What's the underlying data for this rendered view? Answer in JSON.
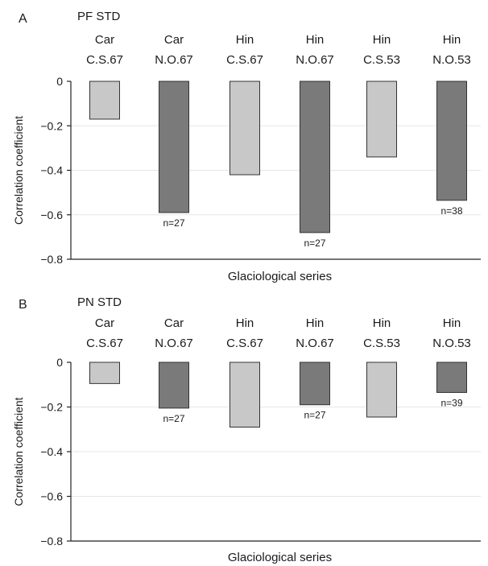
{
  "chart_data": [
    {
      "type": "bar",
      "panel_letter": "A",
      "title": "PF STD",
      "categories": [
        {
          "line1": "Car",
          "line2": "C.S.67"
        },
        {
          "line1": "Car",
          "line2": "N.O.67"
        },
        {
          "line1": "Hin",
          "line2": "C.S.67"
        },
        {
          "line1": "Hin",
          "line2": "N.O.67"
        },
        {
          "line1": "Hin",
          "line2": "C.S.53"
        },
        {
          "line1": "Hin",
          "line2": "N.O.53"
        }
      ],
      "values": [
        -0.17,
        -0.59,
        -0.42,
        -0.68,
        -0.34,
        -0.535
      ],
      "bar_colors": [
        "#c8c8c8",
        "#7a7a7a",
        "#c8c8c8",
        "#7a7a7a",
        "#c8c8c8",
        "#7a7a7a"
      ],
      "data_labels": [
        "",
        "n=27",
        "",
        "n=27",
        "",
        "n=38"
      ],
      "xlabel": "Glaciological series",
      "ylabel": "Correlation coefficient",
      "ylim": [
        -0.8,
        0
      ],
      "yticks": [
        0,
        -0.2,
        -0.4,
        -0.6,
        -0.8
      ],
      "ytick_labels": [
        "0",
        "−0.2",
        "−0.4",
        "−0.6",
        "−0.8"
      ],
      "grid": "horizontal",
      "grid_color": "#e6e6e6"
    },
    {
      "type": "bar",
      "panel_letter": "B",
      "title": "PN STD",
      "categories": [
        {
          "line1": "Car",
          "line2": "C.S.67"
        },
        {
          "line1": "Car",
          "line2": "N.O.67"
        },
        {
          "line1": "Hin",
          "line2": "C.S.67"
        },
        {
          "line1": "Hin",
          "line2": "N.O.67"
        },
        {
          "line1": "Hin",
          "line2": "C.S.53"
        },
        {
          "line1": "Hin",
          "line2": "N.O.53"
        }
      ],
      "values": [
        -0.095,
        -0.205,
        -0.29,
        -0.19,
        -0.245,
        -0.135
      ],
      "bar_colors": [
        "#c8c8c8",
        "#7a7a7a",
        "#c8c8c8",
        "#7a7a7a",
        "#c8c8c8",
        "#7a7a7a"
      ],
      "data_labels": [
        "",
        "n=27",
        "",
        "n=27",
        "",
        "n=39"
      ],
      "xlabel": "Glaciological series",
      "ylabel": "Correlation coefficient",
      "ylim": [
        -0.8,
        0
      ],
      "yticks": [
        0,
        -0.2,
        -0.4,
        -0.6,
        -0.8
      ],
      "ytick_labels": [
        "0",
        "−0.2",
        "−0.4",
        "−0.6",
        "−0.8"
      ],
      "grid": "horizontal",
      "grid_color": "#e6e6e6"
    }
  ]
}
